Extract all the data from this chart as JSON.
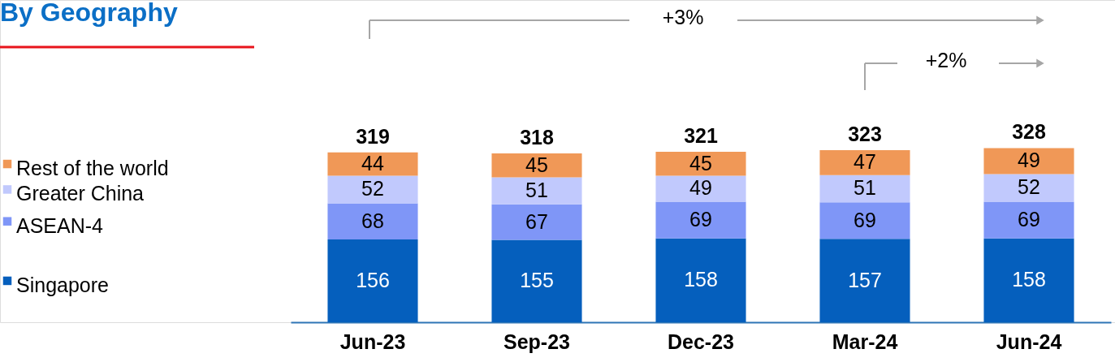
{
  "chart_data": {
    "type": "bar",
    "stacked": true,
    "title": "By Geography",
    "categories": [
      "Jun-23",
      "Sep-23",
      "Dec-23",
      "Mar-24",
      "Jun-24"
    ],
    "series": [
      {
        "name": "Singapore",
        "color": "#055fbd",
        "values": [
          156,
          155,
          158,
          157,
          158
        ]
      },
      {
        "name": "ASEAN-4",
        "color": "#7f96f7",
        "values": [
          68,
          67,
          69,
          69,
          69
        ]
      },
      {
        "name": "Greater China",
        "color": "#c1c9fd",
        "values": [
          52,
          51,
          49,
          51,
          52
        ]
      },
      {
        "name": "Rest of the world",
        "color": "#f09857",
        "values": [
          44,
          45,
          45,
          47,
          49
        ]
      }
    ],
    "totals": [
      "319",
      "318",
      "321",
      "323",
      "328"
    ],
    "data_labels": true,
    "legend": "left",
    "grid": false,
    "annotations": [
      "+3%",
      "+2%"
    ]
  }
}
